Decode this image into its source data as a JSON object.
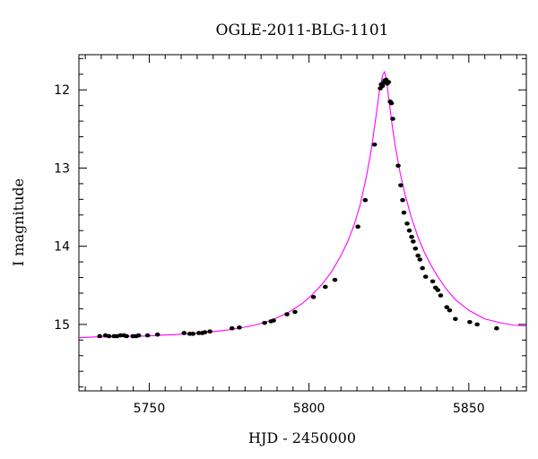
{
  "chart_data": {
    "type": "scatter",
    "title": "OGLE-2011-BLG-1101",
    "xlabel": "HJD - 2450000",
    "ylabel": "I magnitude",
    "xlim": [
      5728,
      5868
    ],
    "ylim": [
      15.85,
      11.55
    ],
    "y_inverted": true,
    "x_ticks": [
      5750,
      5800,
      5850
    ],
    "y_ticks": [
      12,
      13,
      14,
      15
    ],
    "grid": false,
    "colors": {
      "points": "#000000",
      "model": "#ff00ff",
      "axes": "#000000"
    },
    "series": [
      {
        "kind": "points",
        "x": [
          5734.5,
          5736.3,
          5737.4,
          5739.0,
          5739.9,
          5741.0,
          5742.1,
          5742.9,
          5744.9,
          5745.9,
          5746.7,
          5749.5,
          5752.6,
          5760.9,
          5762.7,
          5763.7,
          5765.5,
          5766.6,
          5767.4,
          5769.0,
          5775.9,
          5778.2,
          5786.1,
          5788.1,
          5788.9,
          5793.1,
          5795.6,
          5801.4,
          5805.1,
          5808.1,
          5815.3,
          5817.6,
          5820.5,
          5822.3,
          5822.6,
          5823.0,
          5823.3,
          5823.7,
          5824.1,
          5824.5,
          5824.9,
          5825.4,
          5825.8,
          5826.2,
          5827.9,
          5828.7,
          5829.3,
          5829.7,
          5830.7,
          5831.4,
          5832.1,
          5832.6,
          5833.3,
          5834.1,
          5834.7,
          5835.5,
          5836.5,
          5838.7,
          5839.6,
          5840.3,
          5841.2,
          5843.1,
          5844.0,
          5845.8,
          5850.3,
          5852.6,
          5858.7
        ],
        "y": [
          15.15,
          15.14,
          15.15,
          15.15,
          15.15,
          15.14,
          15.14,
          15.15,
          15.15,
          15.15,
          15.14,
          15.14,
          15.13,
          15.11,
          15.12,
          15.12,
          15.11,
          15.11,
          15.1,
          15.09,
          15.05,
          15.04,
          14.98,
          14.96,
          14.95,
          14.87,
          14.84,
          14.65,
          14.52,
          14.43,
          13.75,
          13.41,
          12.7,
          11.98,
          11.93,
          11.95,
          11.91,
          11.88,
          11.87,
          11.92,
          11.9,
          12.15,
          12.17,
          12.37,
          12.97,
          13.22,
          13.41,
          13.57,
          13.71,
          13.8,
          13.88,
          13.94,
          14.03,
          14.12,
          14.17,
          14.28,
          14.39,
          14.45,
          14.53,
          14.56,
          14.63,
          14.78,
          14.82,
          14.93,
          14.97,
          15.0,
          15.05
        ]
      },
      {
        "kind": "model",
        "x": [
          5728,
          5733,
          5738,
          5743,
          5748,
          5753,
          5758,
          5763,
          5768,
          5773,
          5778,
          5783,
          5788,
          5793,
          5798,
          5801,
          5804,
          5807,
          5810,
          5812,
          5814,
          5816,
          5818,
          5819.5,
          5821,
          5822,
          5823,
          5823.6,
          5824.2,
          5825,
          5826,
          5827,
          5828.5,
          5830,
          5832,
          5834,
          5836,
          5838,
          5840,
          5843,
          5846,
          5850,
          5855,
          5860,
          5864,
          5868
        ],
        "y": [
          15.17,
          15.16,
          15.16,
          15.15,
          15.15,
          15.14,
          15.13,
          15.12,
          15.1,
          15.08,
          15.05,
          15.01,
          14.95,
          14.86,
          14.73,
          14.62,
          14.49,
          14.33,
          14.12,
          13.95,
          13.74,
          13.47,
          13.1,
          12.76,
          12.33,
          12.02,
          11.82,
          11.77,
          11.86,
          12.12,
          12.45,
          12.72,
          13.06,
          13.33,
          13.63,
          13.87,
          14.07,
          14.23,
          14.37,
          14.55,
          14.69,
          14.82,
          14.93,
          14.98,
          15.01,
          15.02
        ]
      }
    ]
  }
}
